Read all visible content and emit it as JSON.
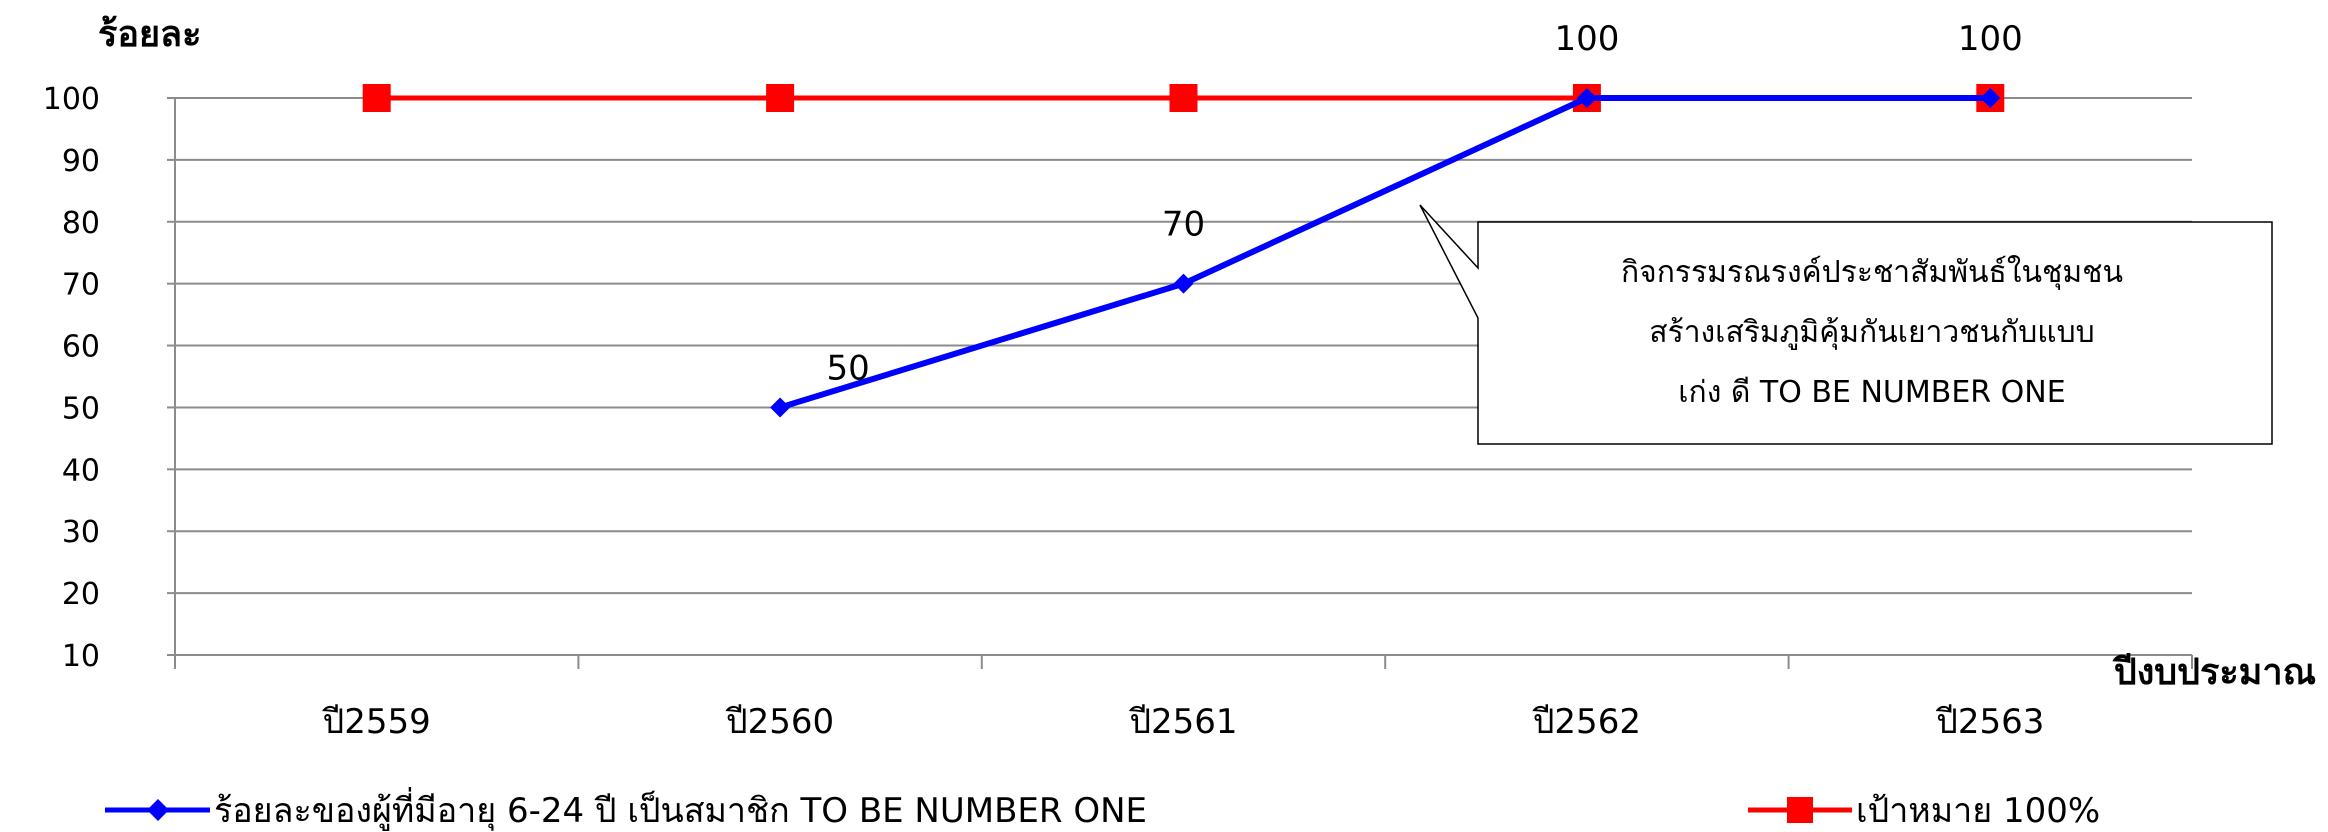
{
  "chart_data": {
    "type": "line",
    "ylabel": "ร้อยละ",
    "xlabel": "ปีงบประมาณ",
    "categories": [
      "ปี2559",
      "ปี2560",
      "ปี2561",
      "ปี2562",
      "ปี2563"
    ],
    "ylim": [
      10,
      100
    ],
    "yticks": [
      10,
      20,
      30,
      40,
      50,
      60,
      70,
      80,
      90,
      100
    ],
    "grid": true,
    "legend_position": "bottom",
    "series": [
      {
        "name": "ร้อยละของผู้ที่มีอายุ 6-24 ปี เป็นสมาชิก TO BE NUMBER ONE",
        "color": "#0000ff",
        "marker": "diamond",
        "values": [
          null,
          50,
          70,
          100,
          100
        ],
        "data_labels": [
          "",
          "50",
          "70",
          "100",
          "100"
        ]
      },
      {
        "name": "เป้าหมาย 100%",
        "color": "#ff0000",
        "marker": "square",
        "values": [
          100,
          100,
          100,
          100,
          100
        ]
      }
    ],
    "annotation": {
      "lines": [
        "กิจกรรมรณรงค์ประชาสัมพันธ์ในชุมชน",
        "สร้างเสริมภูมิคุ้มกันเยาวชนกับแบบ",
        "เก่ง ดี TO BE NUMBER ONE"
      ]
    }
  }
}
